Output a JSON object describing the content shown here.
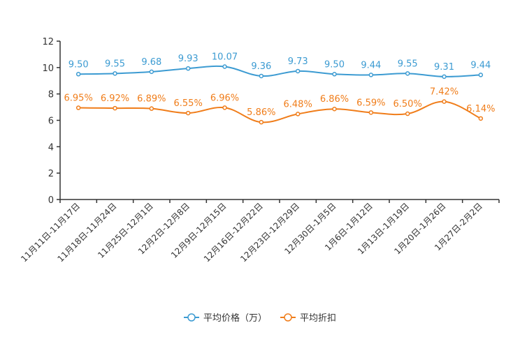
{
  "chart_data": {
    "type": "line",
    "title": "",
    "xlabel": "",
    "ylabel": "",
    "ylim": [
      0,
      12
    ],
    "yticks": [
      0,
      2,
      4,
      6,
      8,
      10,
      12
    ],
    "grid": false,
    "legend_position": "bottom-center",
    "categories": [
      "11月11日-11月17日",
      "11月18日-11月24日",
      "11月25日-12月1日",
      "12月2日-12月8日",
      "12月9日-12月15日",
      "12月16日-12月22日",
      "12月23日-12月29日",
      "12月30日-1月5日",
      "1月6日-1月12日",
      "1月13日-1月19日",
      "1月20日-1月26日",
      "1月27日-2月2日"
    ],
    "series": [
      {
        "name": "平均价格（万）",
        "color": "#3c9bd2",
        "values": [
          9.5,
          9.55,
          9.68,
          9.93,
          10.07,
          9.36,
          9.73,
          9.5,
          9.44,
          9.55,
          9.31,
          9.44
        ],
        "labels": [
          "9.50",
          "9.55",
          "9.68",
          "9.93",
          "10.07",
          "9.36",
          "9.73",
          "9.50",
          "9.44",
          "9.55",
          "9.31",
          "9.44"
        ]
      },
      {
        "name": "平均折扣",
        "color": "#f07d1a",
        "values": [
          6.95,
          6.92,
          6.89,
          6.55,
          6.96,
          5.86,
          6.48,
          6.86,
          6.59,
          6.5,
          7.42,
          6.14
        ],
        "labels": [
          "6.95%",
          "6.92%",
          "6.89%",
          "6.55%",
          "6.96%",
          "5.86%",
          "6.48%",
          "6.86%",
          "6.59%",
          "6.50%",
          "7.42%",
          "6.14%"
        ]
      }
    ]
  }
}
